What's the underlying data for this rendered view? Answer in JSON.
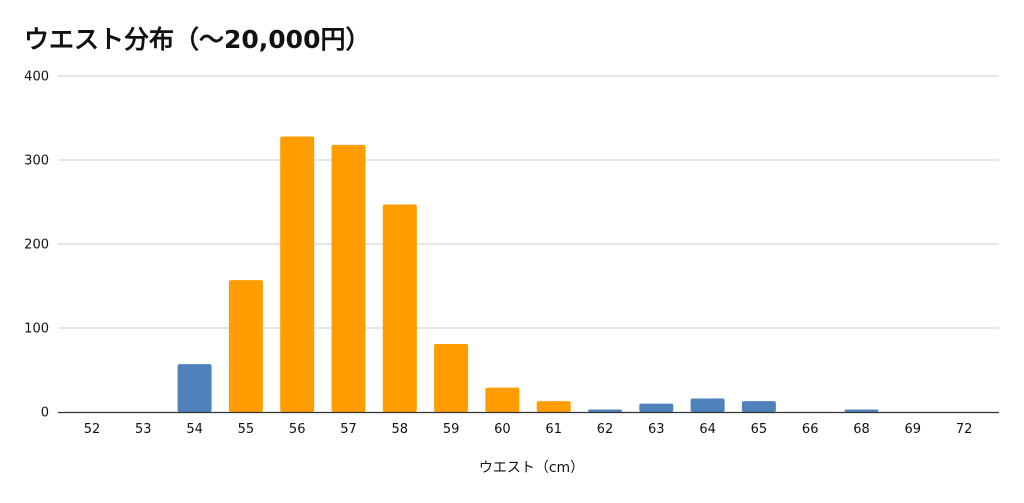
{
  "chart_data": {
    "type": "bar",
    "title": "ウエスト分布（〜20,000円）",
    "xlabel": "ウエスト（cm）",
    "ylabel": "",
    "ylim": [
      0,
      400
    ],
    "yticks": [
      0,
      100,
      200,
      300,
      400
    ],
    "grid": true,
    "legend": "none",
    "categories": [
      "52",
      "53",
      "54",
      "55",
      "56",
      "57",
      "58",
      "59",
      "60",
      "61",
      "62",
      "63",
      "64",
      "65",
      "66",
      "68",
      "69",
      "72"
    ],
    "values": [
      0,
      0,
      57,
      157,
      328,
      318,
      247,
      81,
      29,
      13,
      3,
      10,
      16,
      13,
      0,
      3,
      0,
      0
    ],
    "bar_colors": [
      "#4f81bd",
      "#4f81bd",
      "#4f81bd",
      "#ff9c00",
      "#ff9c00",
      "#ff9c00",
      "#ff9c00",
      "#ff9c00",
      "#ff9c00",
      "#ff9c00",
      "#4f81bd",
      "#4f81bd",
      "#4f81bd",
      "#4f81bd",
      "#4f81bd",
      "#4f81bd",
      "#4f81bd",
      "#4f81bd"
    ],
    "colors": {
      "blue": "#4f81bd",
      "orange": "#ff9c00",
      "grid": "#cccccc",
      "axis": "#333333"
    }
  }
}
